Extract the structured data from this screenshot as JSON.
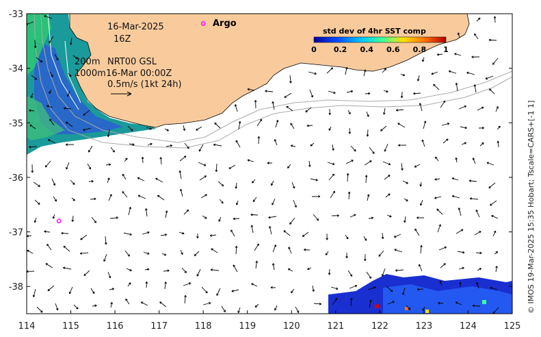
{
  "map": {
    "date": "16-Mar-2025",
    "hour": "16Z",
    "depth_200": "200m",
    "depth_1000": "1000m",
    "product": "NRT00 GSL",
    "analysis_time": "16-Mar 00:00Z",
    "speed_scale": "0.5m/s (1kt 24h)",
    "argo_label": "Argo",
    "credit": "© IMOS 19-Mar-2025 15:35 Hobart; Tscale=CARS+[-1 1]",
    "lon_range": [
      114,
      125
    ],
    "lat_range": [
      -38.5,
      -33
    ],
    "x_ticks": [
      "114",
      "115",
      "116",
      "117",
      "118",
      "119",
      "120",
      "121",
      "122",
      "123",
      "124",
      "125"
    ],
    "y_ticks": [
      "-33",
      "-34",
      "-35",
      "-36",
      "-37",
      "-38"
    ],
    "argo_floats": [
      {
        "lon": 118.0,
        "lat": -33.18
      },
      {
        "lon": 114.73,
        "lat": -36.8
      }
    ],
    "colors": {
      "land": "#f9cb9c",
      "argo": "#ff00ff",
      "contour": "#aaaaaa"
    }
  },
  "legend": {
    "title": "std dev of 4hr SST comp",
    "ticks": [
      "0",
      "0.2",
      "0.4",
      "0.6",
      "0.8",
      "1"
    ],
    "stops": [
      "#0000a0",
      "#0050ff",
      "#00c8ff",
      "#3cff9a",
      "#ffe000",
      "#ff7000",
      "#b00000"
    ]
  }
}
